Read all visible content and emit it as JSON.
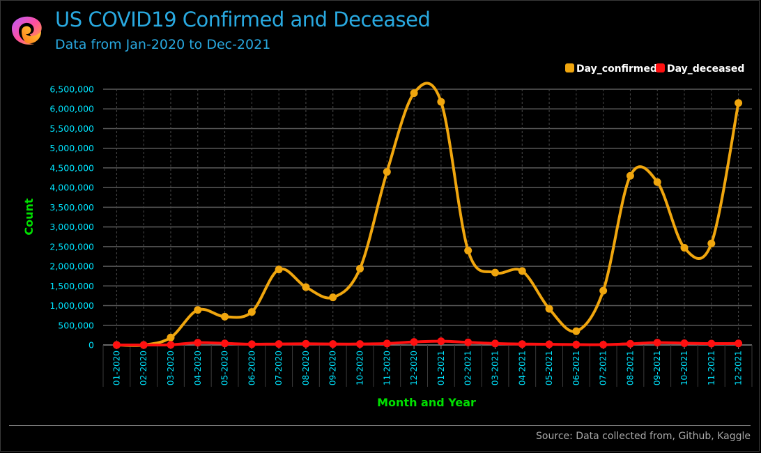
{
  "header": {
    "title": "US COVID19 Confirmed and Deceased",
    "subtitle": "Data from Jan-2020 to Dec-2021",
    "logo": "gradient-swirl-logo"
  },
  "footer": {
    "source": "Source: Data collected from, Github, Kaggle"
  },
  "colors": {
    "background": "#000000",
    "title": "#29a9e0",
    "tick_labels": "#00e5ff",
    "axis_titles": "#00e000",
    "grid": "#5a5a5a",
    "confirmed": "#f0a60e",
    "deceased": "#ff1010"
  },
  "chart_data": {
    "type": "line",
    "xlabel": "Month and Year",
    "ylabel": "Count",
    "ylim": [
      0,
      6500000
    ],
    "yticks": [
      0,
      500000,
      1000000,
      1500000,
      2000000,
      2500000,
      3000000,
      3500000,
      4000000,
      4500000,
      5000000,
      5500000,
      6000000,
      6500000
    ],
    "ytick_labels": [
      "0",
      "500,000",
      "1,000,000",
      "1,500,000",
      "2,000,000",
      "2,500,000",
      "3,000,000",
      "3,500,000",
      "4,000,000",
      "4,500,000",
      "5,000,000",
      "5,500,000",
      "6,000,000",
      "6,500,000"
    ],
    "grid": true,
    "smooth": true,
    "legend_position": "top-right",
    "categories": [
      "01-2020",
      "02-2020",
      "03-2020",
      "04-2020",
      "05-2020",
      "06-2020",
      "07-2020",
      "08-2020",
      "09-2020",
      "10-2020",
      "11-2020",
      "12-2020",
      "01-2021",
      "02-2021",
      "03-2021",
      "04-2021",
      "05-2021",
      "06-2021",
      "07-2021",
      "08-2021",
      "09-2021",
      "10-2021",
      "11-2021",
      "12-2021"
    ],
    "series": [
      {
        "name": "Day_confirmed",
        "color": "#f0a60e",
        "values": [
          10,
          30,
          190000,
          890000,
          720000,
          840000,
          1920000,
          1470000,
          1210000,
          1940000,
          4400000,
          6400000,
          6180000,
          2400000,
          1840000,
          1880000,
          920000,
          350000,
          1380000,
          4300000,
          4140000,
          2470000,
          2580000,
          6150000
        ]
      },
      {
        "name": "Day_deceased",
        "color": "#ff1010",
        "values": [
          0,
          0,
          5000,
          58000,
          40000,
          20000,
          25000,
          30000,
          24000,
          24000,
          37000,
          77000,
          95000,
          67000,
          38000,
          23000,
          18000,
          10000,
          8000,
          30000,
          60000,
          45000,
          35000,
          40000
        ]
      }
    ]
  }
}
